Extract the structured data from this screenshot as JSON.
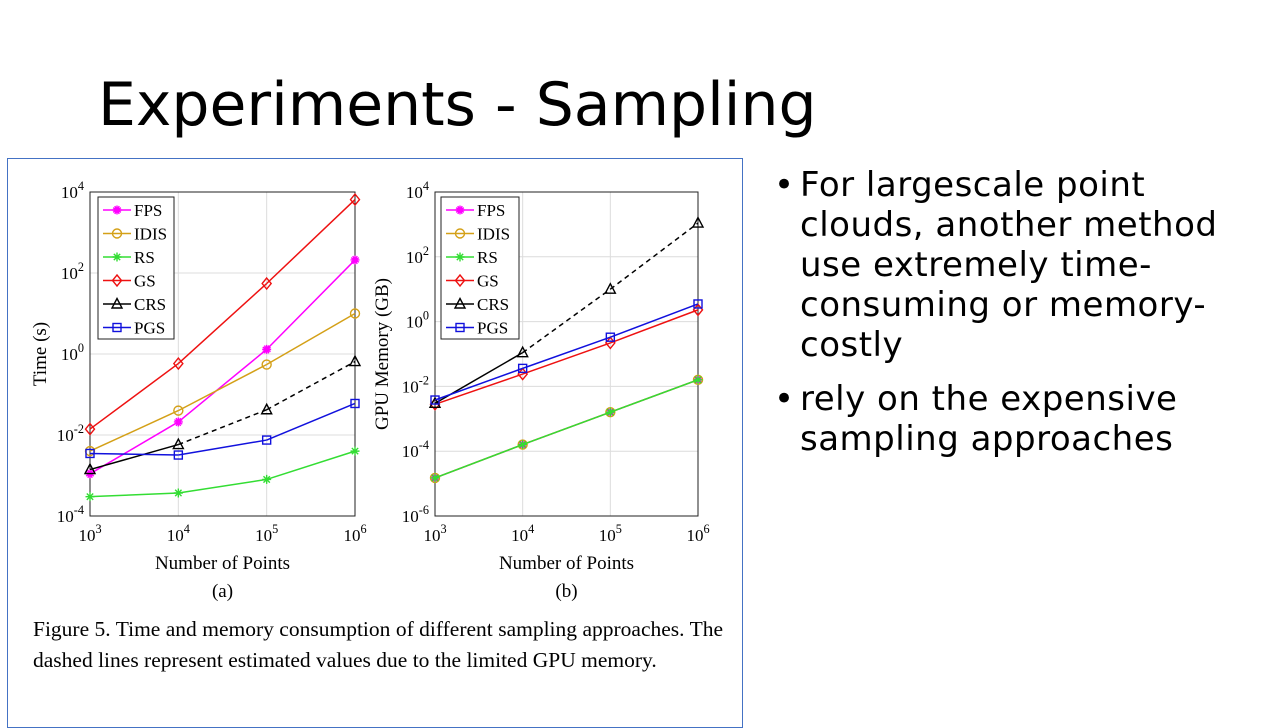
{
  "slide": {
    "title": "Experiments - Sampling",
    "bullets": [
      "For largescale point clouds, another method use extremely time-consuming or memory-costly",
      "rely on the expensive sampling approaches"
    ]
  },
  "figure": {
    "caption": "Figure 5. Time and memory consumption of different sampling approaches.  The dashed lines represent estimated values due to the limited GPU memory."
  },
  "colors": {
    "FPS": "#ff00ff",
    "IDIS": "#d4a017",
    "RS": "#33dd33",
    "GS": "#ee1111",
    "CRS": "#000000",
    "PGS": "#1111dd"
  },
  "chart_data": [
    {
      "type": "line",
      "panel_label": "(a)",
      "xlabel": "Number of Points",
      "ylabel": "Time (s)",
      "x_scale": "log",
      "y_scale": "log",
      "x": [
        1000,
        10000,
        100000,
        1000000
      ],
      "x_tick_labels": [
        [
          "10",
          "3"
        ],
        [
          "10",
          "4"
        ],
        [
          "10",
          "5"
        ],
        [
          "10",
          "6"
        ]
      ],
      "y_ticks": [
        0.0001,
        0.01,
        1,
        100,
        10000
      ],
      "y_tick_labels": [
        [
          "10",
          "-4"
        ],
        [
          "10",
          "-2"
        ],
        [
          "10",
          "0"
        ],
        [
          "10",
          "2"
        ],
        [
          "10",
          "4"
        ]
      ],
      "xlim": [
        1000,
        1000000
      ],
      "ylim": [
        0.0001,
        10000
      ],
      "grid": true,
      "legend": "top-left",
      "series": [
        {
          "name": "FPS",
          "marker": "star",
          "values": [
            0.0011,
            0.021,
            1.3,
            210
          ],
          "dashed_from": null
        },
        {
          "name": "IDIS",
          "marker": "circle",
          "values": [
            0.004,
            0.04,
            0.55,
            10
          ],
          "dashed_from": null
        },
        {
          "name": "RS",
          "marker": "asterisk",
          "values": [
            0.0003,
            0.00037,
            0.0008,
            0.004
          ],
          "dashed_from": null
        },
        {
          "name": "GS",
          "marker": "diamond",
          "values": [
            0.014,
            0.58,
            55,
            6500
          ],
          "dashed_from": null
        },
        {
          "name": "CRS",
          "marker": "triangle",
          "values": [
            0.0014,
            0.0058,
            0.042,
            0.65
          ],
          "dashed_from": 1
        },
        {
          "name": "PGS",
          "marker": "square",
          "values": [
            0.0035,
            0.0032,
            0.0075,
            0.06
          ],
          "dashed_from": null
        }
      ]
    },
    {
      "type": "line",
      "panel_label": "(b)",
      "xlabel": "Number of Points",
      "ylabel": "GPU Memory (GB)",
      "x_scale": "log",
      "y_scale": "log",
      "x": [
        1000,
        10000,
        100000,
        1000000
      ],
      "x_tick_labels": [
        [
          "10",
          "3"
        ],
        [
          "10",
          "4"
        ],
        [
          "10",
          "5"
        ],
        [
          "10",
          "6"
        ]
      ],
      "y_ticks": [
        1e-06,
        0.0001,
        0.01,
        1,
        100,
        10000
      ],
      "y_tick_labels": [
        [
          "10",
          "-6"
        ],
        [
          "10",
          "-4"
        ],
        [
          "10",
          "-2"
        ],
        [
          "10",
          "0"
        ],
        [
          "10",
          "2"
        ],
        [
          "10",
          "4"
        ]
      ],
      "xlim": [
        1000,
        1000000
      ],
      "ylim": [
        1e-06,
        10000
      ],
      "grid": true,
      "legend": "top-left",
      "series": [
        {
          "name": "FPS",
          "marker": "star",
          "values": [
            1.5e-05,
            0.00016,
            0.0016,
            0.016
          ],
          "dashed_from": null
        },
        {
          "name": "IDIS",
          "marker": "circle",
          "values": [
            1.5e-05,
            0.00016,
            0.0016,
            0.016
          ],
          "dashed_from": null
        },
        {
          "name": "RS",
          "marker": "asterisk",
          "values": [
            1.5e-05,
            0.00016,
            0.0016,
            0.016
          ],
          "dashed_from": null
        },
        {
          "name": "GS",
          "marker": "diamond",
          "values": [
            0.0028,
            0.024,
            0.22,
            2.3
          ],
          "dashed_from": null
        },
        {
          "name": "CRS",
          "marker": "triangle",
          "values": [
            0.003,
            0.11,
            10,
            1100
          ],
          "dashed_from": 1
        },
        {
          "name": "PGS",
          "marker": "square",
          "values": [
            0.0038,
            0.036,
            0.33,
            3.5
          ],
          "dashed_from": null
        }
      ]
    }
  ]
}
